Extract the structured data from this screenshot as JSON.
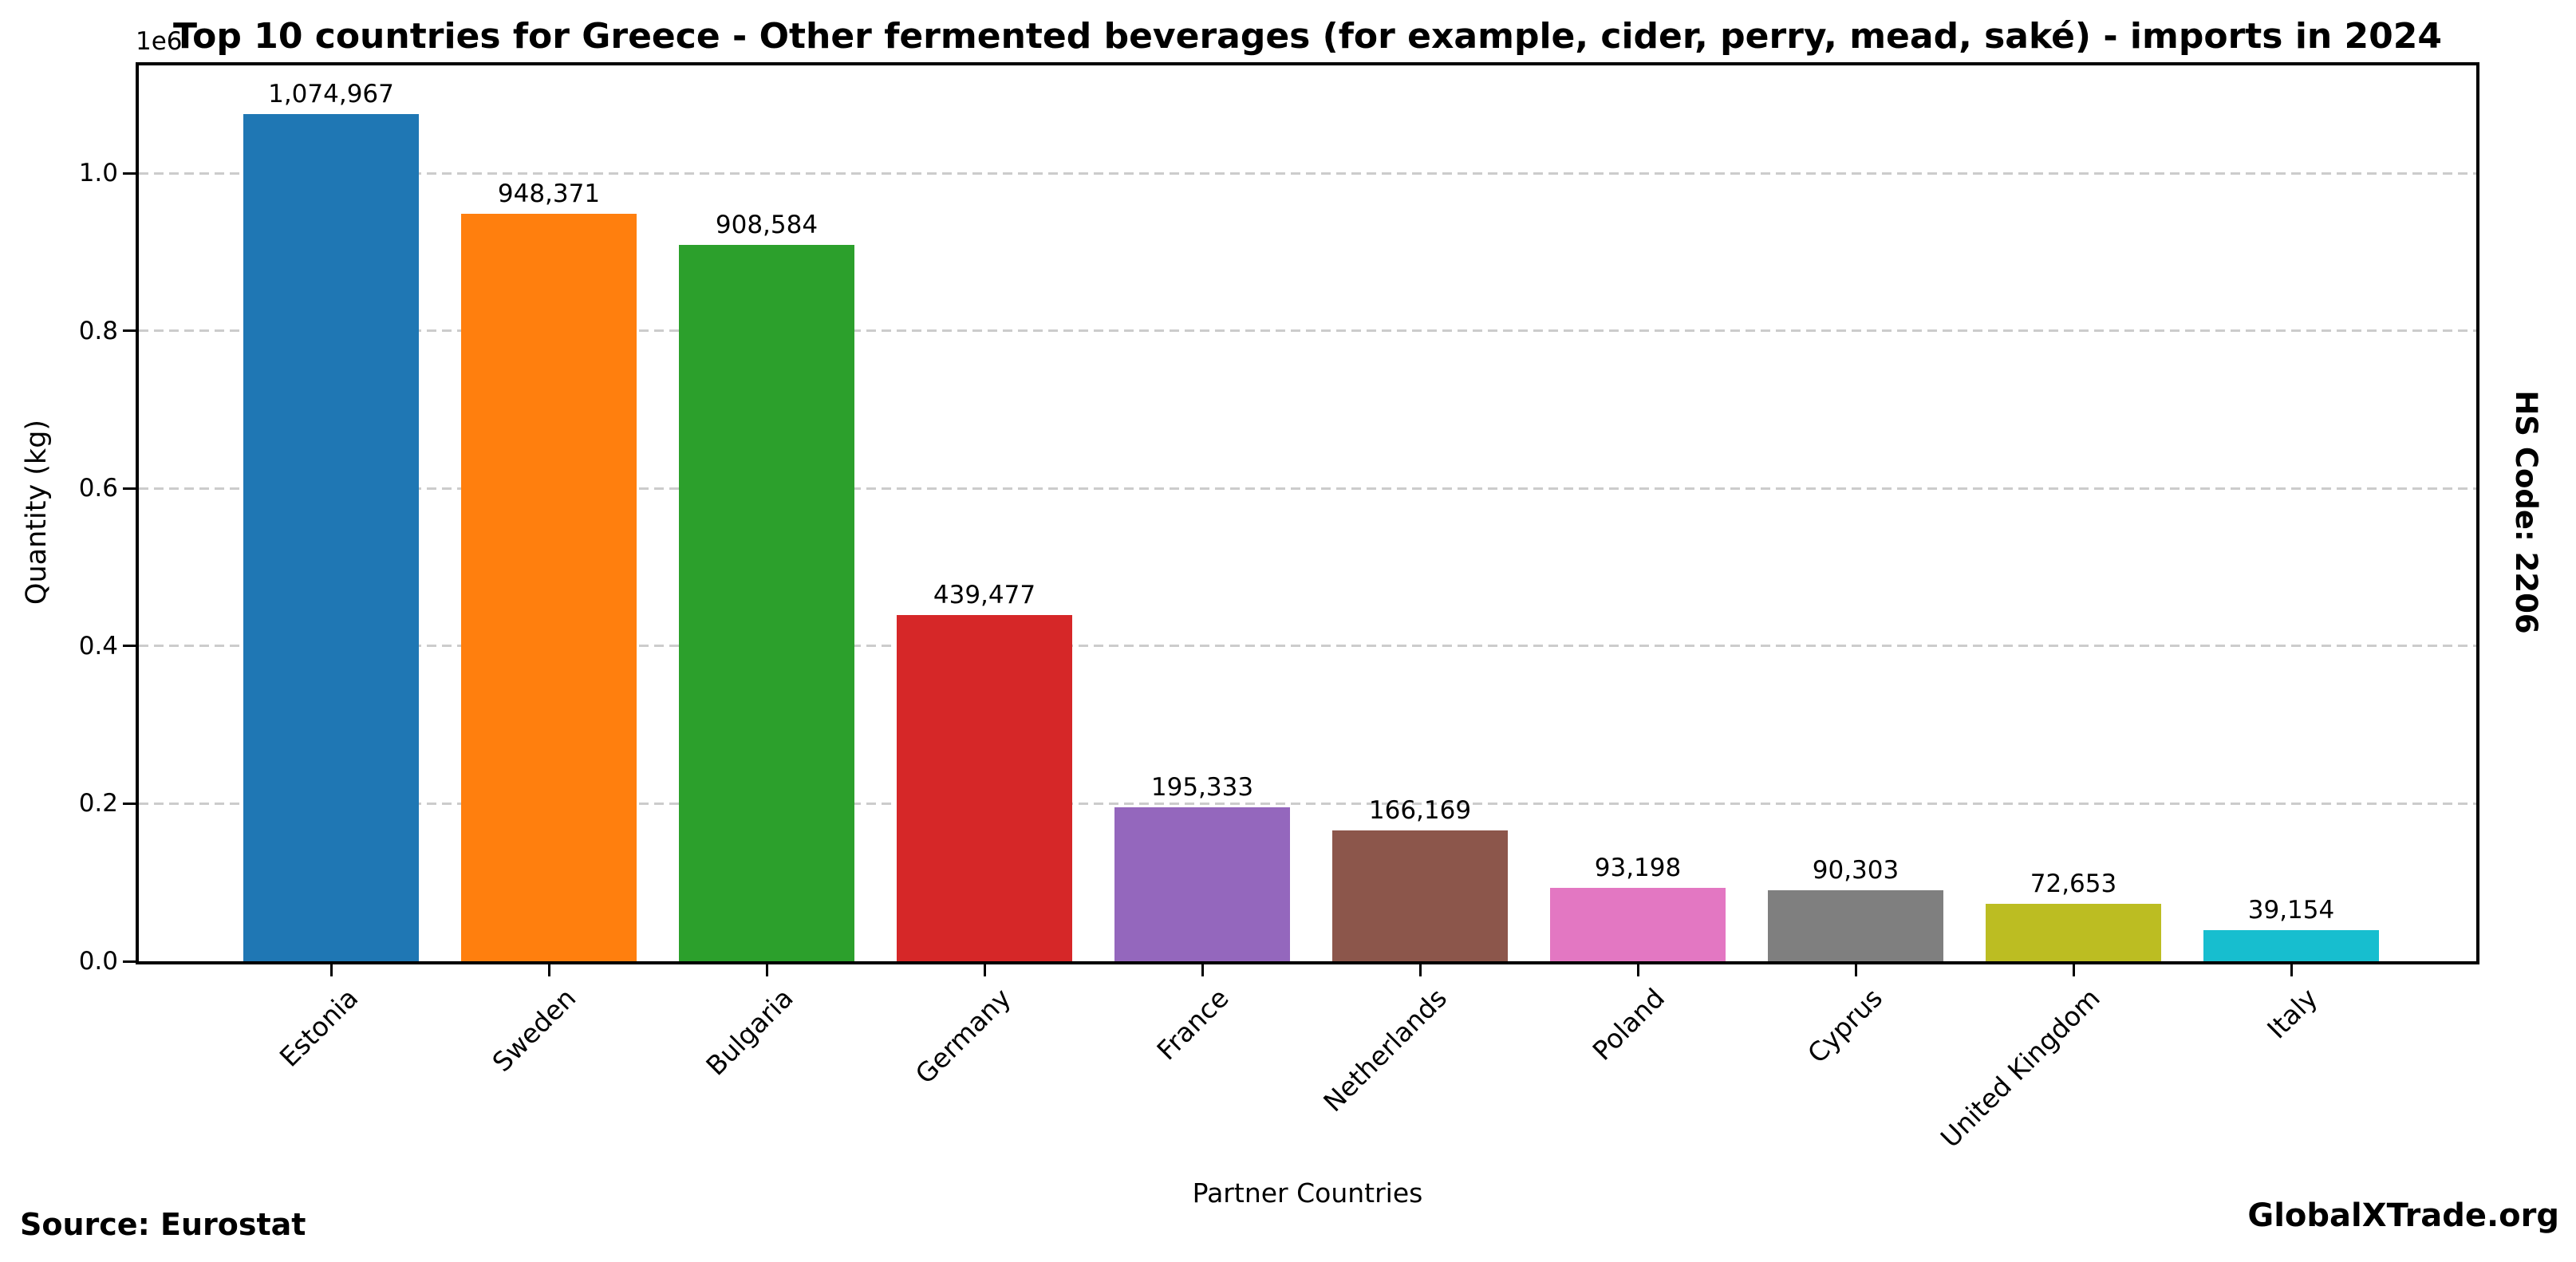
{
  "chart_data": {
    "type": "bar",
    "title": "Top 10 countries for Greece - Other fermented beverages (for example, cider, perry, mead, saké) - imports in 2024",
    "xlabel": "Partner Countries",
    "ylabel": "Quantity (kg)",
    "offset_text": "1e6",
    "categories": [
      "Estonia",
      "Sweden",
      "Bulgaria",
      "Germany",
      "France",
      "Netherlands",
      "Poland",
      "Cyprus",
      "United Kingdom",
      "Italy"
    ],
    "values": [
      1074967,
      948371,
      908584,
      439477,
      195333,
      166169,
      93198,
      90303,
      72653,
      39154
    ],
    "value_labels": [
      "1,074,967",
      "948,371",
      "908,584",
      "439,477",
      "195,333",
      "166,169",
      "93,198",
      "90,303",
      "72,653",
      "39,154"
    ],
    "bar_colors": [
      "#1f77b4",
      "#ff7f0e",
      "#2ca02c",
      "#d62728",
      "#9467bd",
      "#8c564b",
      "#e377c2",
      "#7f7f7f",
      "#bcbd22",
      "#17becf"
    ],
    "ytick_values": [
      0,
      200000,
      400000,
      600000,
      800000,
      1000000
    ],
    "ytick_labels": [
      "0.0",
      "0.2",
      "0.4",
      "0.6",
      "0.8",
      "1.0"
    ],
    "ylim": [
      0,
      1138000
    ],
    "grid": "horizontal dashed",
    "grid_color": "#cccccc",
    "legend": "none"
  },
  "annotations": {
    "source": "Source: Eurostat",
    "brand": "GlobalXTrade.org",
    "hs_code": "HS Code: 2206"
  }
}
